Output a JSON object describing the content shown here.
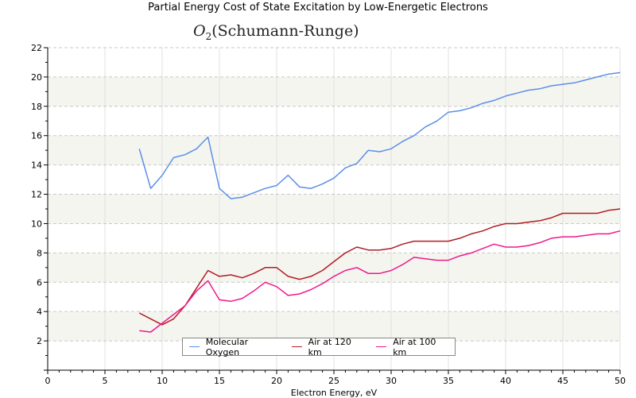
{
  "chart_data": {
    "type": "line",
    "title": "Partial Energy Cost of State Excitation by Low-Energetic Electrons",
    "subtitle_symbol": "O",
    "subtitle_subscript": "2",
    "subtitle_rest": "(Schumann-Runge)",
    "xlabel": "Electron Energy, eV",
    "ylabel": "",
    "xlim": [
      0,
      50
    ],
    "ylim": [
      0,
      22
    ],
    "xticks": [
      0,
      5,
      10,
      15,
      20,
      25,
      30,
      35,
      40,
      45,
      50
    ],
    "yticks": [
      2,
      4,
      6,
      8,
      10,
      12,
      14,
      16,
      18,
      20,
      22
    ],
    "grid": true,
    "legend_placement": "bottom-center",
    "x": [
      8,
      9,
      10,
      11,
      12,
      13,
      14,
      15,
      16,
      17,
      18,
      19,
      20,
      21,
      22,
      23,
      24,
      25,
      26,
      27,
      28,
      29,
      30,
      31,
      32,
      33,
      34,
      35,
      36,
      37,
      38,
      39,
      40,
      41,
      42,
      43,
      44,
      45,
      46,
      47,
      48,
      49,
      50
    ],
    "series": [
      {
        "name": "Molecular Oxygen",
        "color": "#5b8fe8",
        "values": [
          15.1,
          12.4,
          13.3,
          14.5,
          14.7,
          15.1,
          15.9,
          12.4,
          11.7,
          11.8,
          12.1,
          12.4,
          12.6,
          13.3,
          12.5,
          12.4,
          12.7,
          13.1,
          13.8,
          14.1,
          15.0,
          14.9,
          15.1,
          15.6,
          16.0,
          16.6,
          17.0,
          17.6,
          17.7,
          17.9,
          18.2,
          18.4,
          18.7,
          18.9,
          19.1,
          19.2,
          19.4,
          19.5,
          19.6,
          19.8,
          20.0,
          20.2,
          20.3
        ]
      },
      {
        "name": "Air at 120 km",
        "color": "#b01c24",
        "values": [
          3.9,
          3.5,
          3.1,
          3.5,
          4.4,
          5.6,
          6.8,
          6.4,
          6.5,
          6.3,
          6.6,
          7.0,
          7.0,
          6.4,
          6.2,
          6.4,
          6.8,
          7.4,
          8.0,
          8.4,
          8.2,
          8.2,
          8.3,
          8.6,
          8.8,
          8.8,
          8.8,
          8.8,
          9.0,
          9.3,
          9.5,
          9.8,
          10.0,
          10.0,
          10.1,
          10.2,
          10.4,
          10.7,
          10.7,
          10.7,
          10.7,
          10.9,
          11.0
        ]
      },
      {
        "name": "Air at 100 km",
        "color": "#f0188c",
        "values": [
          2.7,
          2.6,
          3.2,
          3.8,
          4.4,
          5.4,
          6.1,
          4.8,
          4.7,
          4.9,
          5.4,
          6.0,
          5.7,
          5.1,
          5.2,
          5.5,
          5.9,
          6.4,
          6.8,
          7.0,
          6.6,
          6.6,
          6.8,
          7.2,
          7.7,
          7.6,
          7.5,
          7.5,
          7.8,
          8.0,
          8.3,
          8.6,
          8.4,
          8.4,
          8.5,
          8.7,
          9.0,
          9.1,
          9.1,
          9.2,
          9.3,
          9.3,
          9.5
        ]
      }
    ]
  }
}
